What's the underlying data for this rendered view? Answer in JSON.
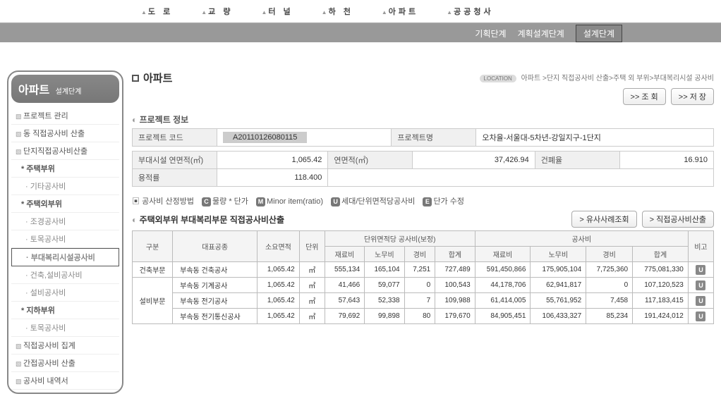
{
  "topnav": [
    "도 로",
    "교 량",
    "터 널",
    "하 천",
    "아파트",
    "공공청사"
  ],
  "subnav": {
    "items": [
      "기획단계",
      "계획설계단계",
      "설계단계"
    ],
    "active": 2
  },
  "sidebar": {
    "title": "아파트",
    "sub": "설계단계",
    "items": [
      {
        "t": "프로젝트 관리",
        "lvl": 1
      },
      {
        "t": "동 직접공사비 산출",
        "lvl": 1
      },
      {
        "t": "단지직접공사비산출",
        "lvl": 1
      },
      {
        "t": "주택부위",
        "lvl": 2
      },
      {
        "t": "기타공사비",
        "lvl": 3
      },
      {
        "t": "주택외부위",
        "lvl": 2
      },
      {
        "t": "조경공사비",
        "lvl": 3
      },
      {
        "t": "토목공사비",
        "lvl": 3
      },
      {
        "t": "부대복리시설공사비",
        "lvl": 3,
        "sel": true
      },
      {
        "t": "건축,설비공사비",
        "lvl": 3
      },
      {
        "t": "설비공사비",
        "lvl": 3
      },
      {
        "t": "지하부위",
        "lvl": 2
      },
      {
        "t": "토목공사비",
        "lvl": 3
      },
      {
        "t": "직접공사비 집계",
        "lvl": 1
      },
      {
        "t": "간접공사비 산출",
        "lvl": 1
      },
      {
        "t": "공사비 내역서",
        "lvl": 1
      }
    ]
  },
  "page": {
    "title": "아파트"
  },
  "breadcrumb": {
    "loc": "LOCATION",
    "path": "아파트 >단지 직접공사비 산출>주택 외 부위>부대복리시설 공사비"
  },
  "mainBtns": {
    "view": ">> 조 회",
    "save": ">> 저 장"
  },
  "proj": {
    "title": "프로젝트 정보",
    "codeL": "프로젝트 코드",
    "code": "A20110126080115",
    "nameL": "프로젝트명",
    "name": "오차율-서울대-5차년-강일지구-1단지",
    "areaSubL": "부대시설 연면적(㎡)",
    "areaSub": "1,065.42",
    "areaL": "연면적(㎡)",
    "area": "37,426.94",
    "covL": "건폐율",
    "cov": "16.910",
    "farL": "용적률",
    "far": "118.400"
  },
  "tabs": {
    "t0": "공사비 산정방법",
    "c": "C",
    "t1": "물량 * 단가",
    "m": "M",
    "t2": "Minor item(ratio)",
    "u": "U",
    "t3": "세대/단위면적당공사비",
    "e": "E",
    "t4": "단가 수정"
  },
  "sub": {
    "title": "주택외부위 부대복리부문 직접공사비산출",
    "b1": "> 유사사례조회",
    "b2": "> 직접공사비산출"
  },
  "thead": {
    "gubun": "구분",
    "rep": "대표공종",
    "area": "소요면적",
    "unit": "단위",
    "unitCost": "단위면적당 공사비(보정)",
    "cost": "공사비",
    "bigo": "비고",
    "mat": "재료비",
    "lab": "노무비",
    "exp": "경비",
    "sum": "합계"
  },
  "rows": [
    {
      "g": "건축부문",
      "rep": "부속동 건축공사",
      "area": "1,065.42",
      "unit": "㎡",
      "um": "555,134",
      "ul": "165,104",
      "ue": "7,251",
      "us": "727,489",
      "m": "591,450,866",
      "l": "175,905,104",
      "e": "7,725,360",
      "s": "775,081,330"
    },
    {
      "g": "설비부문",
      "rep": "부속동 기계공사",
      "area": "1,065.42",
      "unit": "㎡",
      "um": "41,466",
      "ul": "59,077",
      "ue": "0",
      "us": "100,543",
      "m": "44,178,706",
      "l": "62,941,817",
      "e": "0",
      "s": "107,120,523"
    },
    {
      "g": "",
      "rep": "부속동 전기공사",
      "area": "1,065.42",
      "unit": "㎡",
      "um": "57,643",
      "ul": "52,338",
      "ue": "7",
      "us": "109,988",
      "m": "61,414,005",
      "l": "55,761,952",
      "e": "7,458",
      "s": "117,183,415"
    },
    {
      "g": "",
      "rep": "부속동 전기통신공사",
      "area": "1,065.42",
      "unit": "㎡",
      "um": "79,692",
      "ul": "99,898",
      "ue": "80",
      "us": "179,670",
      "m": "84,905,451",
      "l": "106,433,327",
      "e": "85,234",
      "s": "191,424,012"
    }
  ],
  "u": "U"
}
